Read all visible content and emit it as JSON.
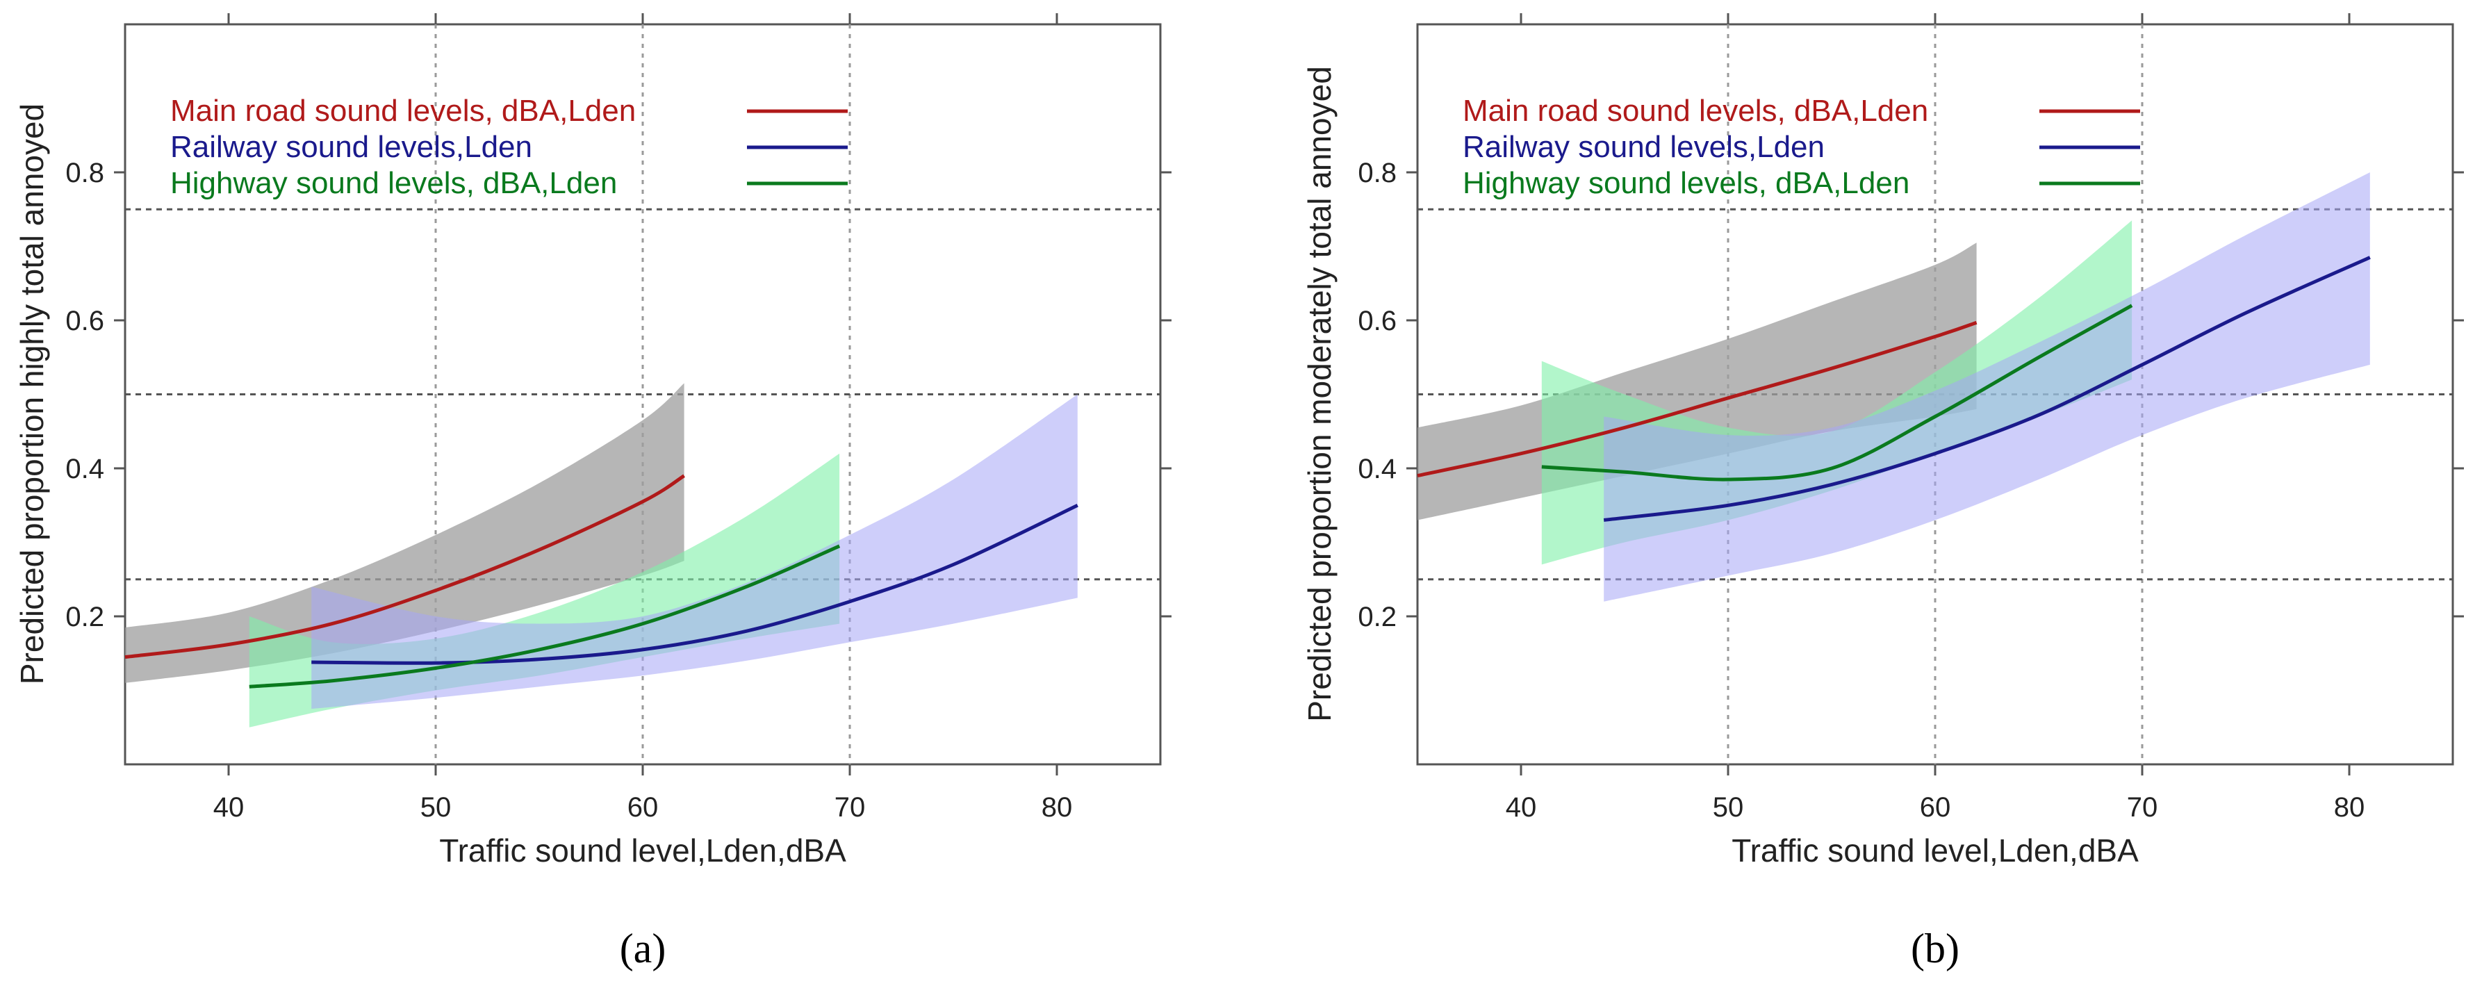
{
  "chart_data": [
    {
      "type": "line",
      "panel_label": "(a)",
      "xlabel": "Traffic sound level,Lden,dBA",
      "ylabel": "Predicted proportion highly total annoyed",
      "xlim": [
        35,
        85
      ],
      "ylim": [
        0,
        1.0
      ],
      "x_ticks": [
        40,
        50,
        60,
        70,
        80
      ],
      "y_ticks": [
        0.2,
        0.4,
        0.6,
        0.8
      ],
      "x_tick_labels": [
        "40",
        "50",
        "60",
        "70",
        "80"
      ],
      "y_tick_labels": [
        "0.2",
        "0.4",
        "0.6",
        "0.8"
      ],
      "vertical_gridlines": [
        50,
        60,
        70
      ],
      "horizontal_reference_lines": [
        0.25,
        0.5,
        0.75
      ],
      "legend_position": "top-left",
      "series": [
        {
          "name": "Main road sound levels, dBA,Lden",
          "color": "#b01a1a",
          "band_color": "#9e9e9e",
          "x": [
            35,
            40,
            45,
            50,
            55,
            60,
            62
          ],
          "values": [
            0.145,
            0.162,
            0.19,
            0.235,
            0.29,
            0.355,
            0.39
          ],
          "ci_lower": [
            0.11,
            0.127,
            0.15,
            0.18,
            0.215,
            0.255,
            0.275
          ],
          "ci_upper": [
            0.185,
            0.205,
            0.25,
            0.31,
            0.38,
            0.465,
            0.515
          ]
        },
        {
          "name": "Railway sound levels,Lden",
          "color": "#1a1a8c",
          "band_color": "#a6a6f5",
          "x": [
            44,
            50,
            55,
            60,
            65,
            70,
            75,
            81
          ],
          "values": [
            0.138,
            0.137,
            0.142,
            0.155,
            0.18,
            0.22,
            0.27,
            0.35
          ],
          "ci_lower": [
            0.075,
            0.09,
            0.105,
            0.12,
            0.14,
            0.165,
            0.19,
            0.225
          ],
          "ci_upper": [
            0.24,
            0.2,
            0.19,
            0.2,
            0.245,
            0.31,
            0.385,
            0.5
          ]
        },
        {
          "name": "Highway sound levels, dBA,Lden",
          "color": "#0a7a1e",
          "band_color": "#7ff0a8",
          "x": [
            41,
            45,
            50,
            55,
            60,
            65,
            69.5
          ],
          "values": [
            0.105,
            0.113,
            0.13,
            0.155,
            0.19,
            0.24,
            0.295
          ],
          "ci_lower": [
            0.05,
            0.075,
            0.1,
            0.12,
            0.145,
            0.17,
            0.19
          ],
          "ci_upper": [
            0.2,
            0.165,
            0.17,
            0.205,
            0.26,
            0.335,
            0.42
          ]
        }
      ]
    },
    {
      "type": "line",
      "panel_label": "(b)",
      "xlabel": "Traffic sound level,Lden,dBA",
      "ylabel": "Predicted proportion moderately total annoyed",
      "xlim": [
        35,
        85
      ],
      "ylim": [
        0,
        1.0
      ],
      "x_ticks": [
        40,
        50,
        60,
        70,
        80
      ],
      "y_ticks": [
        0.2,
        0.4,
        0.6,
        0.8
      ],
      "x_tick_labels": [
        "40",
        "50",
        "60",
        "70",
        "80"
      ],
      "y_tick_labels": [
        "0.2",
        "0.4",
        "0.6",
        "0.8"
      ],
      "vertical_gridlines": [
        50,
        60,
        70
      ],
      "horizontal_reference_lines": [
        0.25,
        0.5,
        0.75
      ],
      "legend_position": "top-left",
      "series": [
        {
          "name": "Main road sound levels, dBA,Lden",
          "color": "#b01a1a",
          "band_color": "#9e9e9e",
          "x": [
            35,
            40,
            45,
            50,
            55,
            60,
            62
          ],
          "values": [
            0.39,
            0.42,
            0.455,
            0.495,
            0.535,
            0.578,
            0.597
          ],
          "ci_lower": [
            0.33,
            0.36,
            0.39,
            0.42,
            0.45,
            0.47,
            0.48
          ],
          "ci_upper": [
            0.455,
            0.485,
            0.53,
            0.575,
            0.625,
            0.675,
            0.705
          ]
        },
        {
          "name": "Railway sound levels,Lden",
          "color": "#1a1a8c",
          "band_color": "#a6a6f5",
          "x": [
            44,
            50,
            55,
            60,
            65,
            70,
            75,
            81
          ],
          "values": [
            0.33,
            0.35,
            0.378,
            0.42,
            0.472,
            0.54,
            0.61,
            0.685
          ],
          "ci_lower": [
            0.22,
            0.255,
            0.285,
            0.33,
            0.385,
            0.445,
            0.495,
            0.54
          ],
          "ci_upper": [
            0.47,
            0.445,
            0.455,
            0.505,
            0.57,
            0.64,
            0.715,
            0.8
          ]
        },
        {
          "name": "Highway sound levels, dBA,Lden",
          "color": "#0a7a1e",
          "band_color": "#7ff0a8",
          "x": [
            41,
            45,
            50,
            55,
            60,
            65,
            69.5
          ],
          "values": [
            0.402,
            0.395,
            0.385,
            0.4,
            0.47,
            0.55,
            0.62
          ],
          "ci_lower": [
            0.27,
            0.3,
            0.33,
            0.37,
            0.42,
            0.47,
            0.52
          ],
          "ci_upper": [
            0.545,
            0.5,
            0.455,
            0.45,
            0.53,
            0.63,
            0.735
          ]
        }
      ]
    }
  ]
}
